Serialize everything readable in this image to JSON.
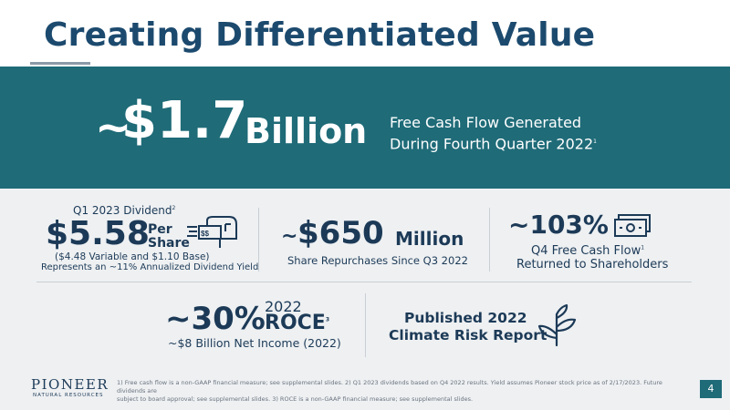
{
  "title": "Creating Differentiated Value",
  "banner": {
    "tilde": "~",
    "amount": "$1.7",
    "unit": "Billion",
    "desc_line1": "Free Cash Flow Generated",
    "desc_line2": "During Fourth Quarter 2022",
    "desc_sup": "1"
  },
  "dividend": {
    "heading": "Q1 2023 Dividend",
    "heading_sup": "2",
    "amount": "$5.58",
    "per": "Per",
    "share": "Share",
    "breakdown": "($4.48 Variable and $1.10 Base)",
    "yield": "Represents an ~11% Annualized Dividend Yield",
    "icon": "mailbox-icon"
  },
  "repurchase": {
    "tilde": "~",
    "amount": "$650",
    "unit": "Million",
    "desc": "Share Repurchases Since Q3 2022"
  },
  "fcf_return": {
    "amount": "~103%",
    "line1": "Q4 Free Cash Flow",
    "line1_sup": "1",
    "line2": "Returned to Shareholders",
    "icon": "cash-icon"
  },
  "roce": {
    "amount": "~30%",
    "year": "2022",
    "label": "ROCE",
    "label_sup": "3",
    "desc": "~$8 Billion Net Income (2022)"
  },
  "climate": {
    "line1": "Published 2022",
    "line2": "Climate Risk Report",
    "icon": "plant-icon"
  },
  "footer": {
    "line1": "1) Free cash flow is a non-GAAP financial measure; see supplemental slides. 2) Q1 2023 dividends based on Q4 2022 results. Yield assumes Pioneer stock price as of 2/17/2023. Future dividends are",
    "line2": "subject to board approval; see supplemental slides. 3) ROCE is a non-GAAP financial measure; see supplemental slides."
  },
  "logo": {
    "name": "PIONEER",
    "sub": "NATURAL RESOURCES"
  },
  "page_number": "4",
  "colors": {
    "navy": "#1c3a57",
    "teal": "#1f6b78",
    "gray_bg": "#eef0f2"
  }
}
